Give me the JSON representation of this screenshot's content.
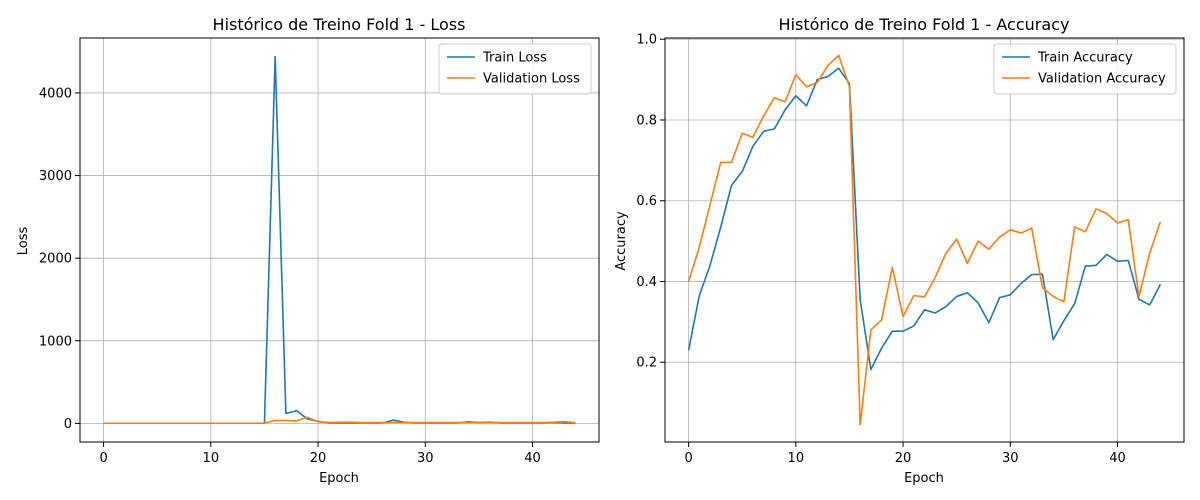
{
  "figure": {
    "background": "#ffffff",
    "grid_color": "#b0b0b0"
  },
  "chart_data": [
    {
      "type": "line",
      "title": "Histórico de Treino Fold 1 - Loss",
      "xlabel": "Epoch",
      "ylabel": "Loss",
      "xlim": [
        -2.2,
        46.2
      ],
      "ylim": [
        -225,
        4665
      ],
      "xticks": [
        0,
        10,
        20,
        30,
        40
      ],
      "yticks": [
        0,
        1000,
        2000,
        3000,
        4000
      ],
      "grid": true,
      "legend": "upper right",
      "x": [
        0,
        1,
        2,
        3,
        4,
        5,
        6,
        7,
        8,
        9,
        10,
        11,
        12,
        13,
        14,
        15,
        16,
        17,
        18,
        19,
        20,
        21,
        22,
        23,
        24,
        25,
        26,
        27,
        28,
        29,
        30,
        31,
        32,
        33,
        34,
        35,
        36,
        37,
        38,
        39,
        40,
        41,
        42,
        43,
        44
      ],
      "series": [
        {
          "name": "Train Loss",
          "color": "#1f77b4",
          "values": [
            2,
            2,
            2,
            2,
            2,
            2,
            2,
            2,
            2,
            2,
            2,
            2,
            2,
            2,
            2,
            2,
            4440,
            120,
            155,
            55,
            25,
            5,
            5,
            5,
            5,
            5,
            5,
            40,
            15,
            5,
            5,
            5,
            5,
            5,
            20,
            10,
            15,
            5,
            5,
            5,
            5,
            5,
            10,
            5,
            5
          ]
        },
        {
          "name": "Validation Loss",
          "color": "#ff7f0e",
          "values": [
            2,
            2,
            2,
            2,
            2,
            2,
            2,
            2,
            2,
            2,
            2,
            2,
            2,
            2,
            2,
            5,
            35,
            35,
            30,
            75,
            20,
            10,
            15,
            15,
            10,
            10,
            10,
            10,
            10,
            10,
            10,
            10,
            10,
            10,
            10,
            10,
            10,
            10,
            10,
            10,
            10,
            10,
            15,
            20,
            10
          ]
        }
      ]
    },
    {
      "type": "line",
      "title": "Histórico de Treino Fold 1 - Accuracy",
      "xlabel": "Epoch",
      "ylabel": "Accuracy",
      "xlim": [
        -2.2,
        46.2
      ],
      "ylim": [
        0.0025,
        1.003
      ],
      "xticks": [
        0,
        10,
        20,
        30,
        40
      ],
      "yticks": [
        0.2,
        0.4,
        0.6,
        0.8,
        1.0
      ],
      "grid": true,
      "legend": "upper right",
      "x": [
        0,
        1,
        2,
        3,
        4,
        5,
        6,
        7,
        8,
        9,
        10,
        11,
        12,
        13,
        14,
        15,
        16,
        17,
        18,
        19,
        20,
        21,
        22,
        23,
        24,
        25,
        26,
        27,
        28,
        29,
        30,
        31,
        32,
        33,
        34,
        35,
        36,
        37,
        38,
        39,
        40,
        41,
        42,
        43,
        44
      ],
      "series": [
        {
          "name": "Train Accuracy",
          "color": "#1f77b4",
          "values": [
            0.23,
            0.365,
            0.44,
            0.535,
            0.638,
            0.672,
            0.735,
            0.772,
            0.778,
            0.825,
            0.86,
            0.835,
            0.9,
            0.908,
            0.928,
            0.89,
            0.355,
            0.182,
            0.235,
            0.277,
            0.277,
            0.29,
            0.33,
            0.322,
            0.338,
            0.363,
            0.372,
            0.347,
            0.298,
            0.36,
            0.367,
            0.395,
            0.417,
            0.418,
            0.256,
            0.303,
            0.345,
            0.438,
            0.44,
            0.467,
            0.45,
            0.452,
            0.356,
            0.342,
            0.393
          ]
        },
        {
          "name": "Validation Accuracy",
          "color": "#ff7f0e",
          "values": [
            0.4,
            0.485,
            0.59,
            0.695,
            0.695,
            0.767,
            0.757,
            0.81,
            0.855,
            0.845,
            0.912,
            0.882,
            0.893,
            0.935,
            0.96,
            0.883,
            0.045,
            0.28,
            0.305,
            0.435,
            0.313,
            0.365,
            0.362,
            0.41,
            0.47,
            0.505,
            0.445,
            0.5,
            0.48,
            0.51,
            0.528,
            0.52,
            0.532,
            0.385,
            0.363,
            0.35,
            0.535,
            0.523,
            0.58,
            0.568,
            0.545,
            0.553,
            0.363,
            0.47,
            0.548
          ]
        }
      ]
    }
  ]
}
